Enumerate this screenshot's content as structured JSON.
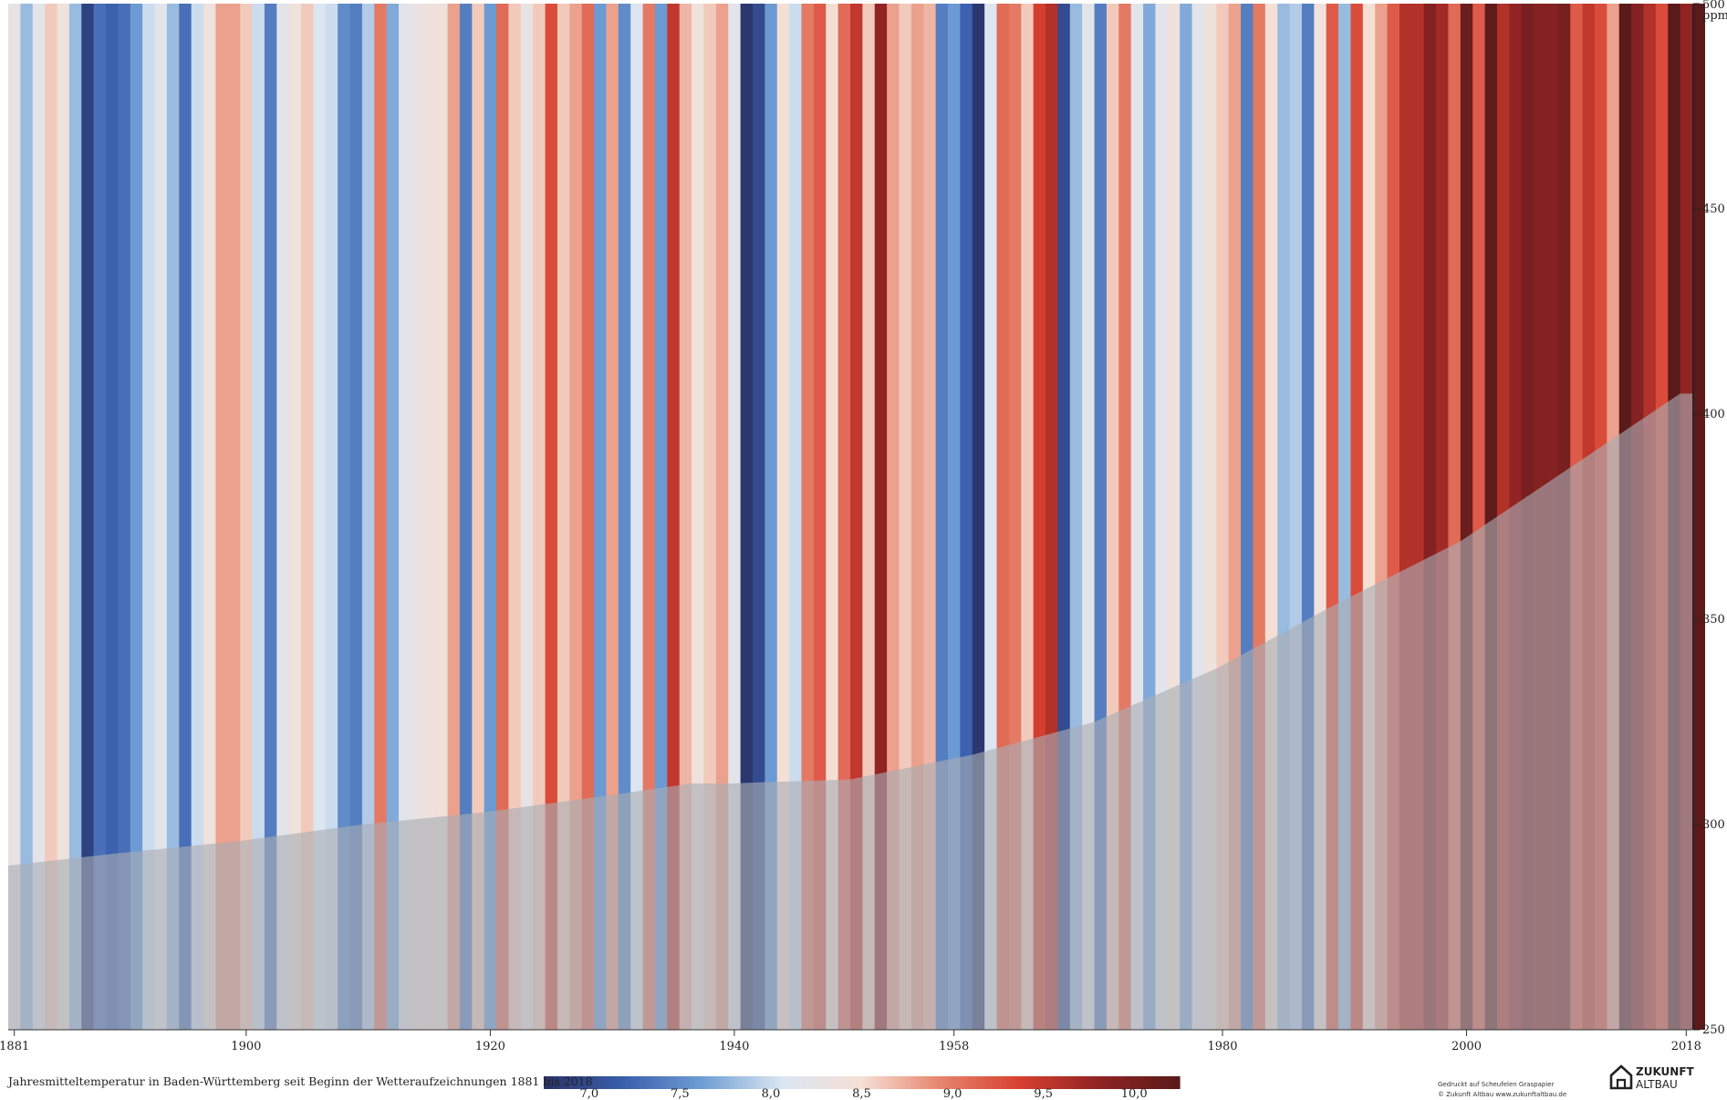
{
  "chart_data": {
    "type": "heatmap",
    "title": "Jahresmitteltemperatur in Baden-Württemberg seit Beginn der Wetteraufzeichnungen 1881 bis 2018",
    "years": {
      "start": 1881,
      "end": 2018
    },
    "stripe_temperatures_c": [
      8.3,
      7.8,
      8.2,
      8.6,
      8.4,
      7.8,
      6.9,
      7.3,
      7.2,
      7.3,
      7.6,
      8.0,
      8.2,
      7.8,
      7.3,
      8.0,
      8.4,
      8.8,
      8.8,
      8.6,
      8.0,
      7.4,
      8.2,
      8.4,
      8.6,
      8.1,
      8.0,
      7.5,
      7.4,
      7.9,
      9.0,
      7.7,
      8.2,
      8.3,
      8.4,
      8.4,
      8.8,
      7.4,
      8.6,
      7.6,
      9.1,
      8.6,
      8.3,
      8.6,
      9.3,
      8.6,
      8.8,
      9.1,
      7.6,
      8.8,
      7.5,
      8.1,
      9.0,
      7.6,
      9.5,
      8.7,
      8.4,
      8.6,
      8.8,
      8.2,
      6.8,
      7.0,
      7.6,
      8.5,
      8.0,
      9.0,
      9.2,
      8.5,
      9.1,
      9.5,
      8.6,
      9.8,
      8.8,
      8.6,
      8.8,
      8.7,
      7.4,
      7.6,
      7.2,
      6.8,
      8.1,
      9.1,
      9.0,
      8.6,
      9.4,
      9.6,
      7.0,
      7.8,
      8.2,
      7.4,
      8.6,
      9.0,
      8.2,
      7.7,
      8.2,
      8.4,
      7.7,
      8.2,
      8.4,
      8.6,
      8.8,
      7.4,
      9.0,
      8.5,
      7.8,
      7.9,
      7.4,
      8.4,
      9.2,
      7.8,
      9.3,
      8.5,
      8.8,
      9.2,
      9.6,
      9.6,
      9.9,
      9.7,
      9.1,
      10.1,
      9.2,
      10.2,
      9.6,
      9.8,
      10.0,
      9.9,
      9.9,
      10.0,
      9.2,
      9.5,
      9.3,
      8.8,
      10.4,
      9.9,
      9.6,
      9.3,
      10.5,
      9.8,
      10.8
    ],
    "stripe_colors": [
      "#2a3268",
      "#3a5fad",
      "#6f9ed4",
      "#dbe6f3",
      "#f5dfd4",
      "#e6846d",
      "#d7402f",
      "#8f2323",
      "#5a1a1a"
    ],
    "colorbar": {
      "range": [
        6.75,
        10.25
      ],
      "tick_values": [
        7.0,
        7.5,
        8.0,
        8.5,
        9.0,
        9.5,
        10.0
      ],
      "tick_labels": [
        "7,0",
        "7,5",
        "8,0",
        "8,5",
        "9,0",
        "9,5",
        "10,0"
      ]
    },
    "x_axis": {
      "ticks": [
        1881,
        1900,
        1920,
        1940,
        1958,
        1980,
        2000,
        2018
      ],
      "tick_labels": [
        "1881",
        "1900",
        "1920",
        "1940",
        "1958",
        "1980",
        "2000",
        "2018"
      ]
    },
    "co2_axis": {
      "unit_label": "ppm",
      "range": [
        250,
        500
      ],
      "ticks": [
        250,
        300,
        350,
        400,
        450,
        500
      ],
      "tick_labels": [
        "250",
        "300",
        "350",
        "400",
        "450",
        "500"
      ]
    },
    "co2_series": {
      "x": [
        1881,
        1890,
        1900,
        1910,
        1920,
        1930,
        1937,
        1940,
        1950,
        1960,
        1970,
        1980,
        1990,
        2000,
        2010,
        2018
      ],
      "values": [
        290,
        293,
        296,
        300,
        303,
        307,
        310,
        310,
        311,
        317,
        325,
        338,
        354,
        369,
        389,
        405
      ]
    },
    "overlay_color": "#a9adb4"
  },
  "footer": {
    "title": "Jahresmitteltemperatur in Baden-Württemberg seit Beginn der Wetteraufzeichnungen 1881 bis 2018",
    "printed_line1": "Gedruckt auf Scheufelen Graspapier",
    "printed_line2": "© Zukunft Altbau www.zukunftaltbau.de"
  },
  "logo": {
    "line1": "ZUKUNFT",
    "line2": "ALTBAU",
    "icon": "house-icon"
  }
}
